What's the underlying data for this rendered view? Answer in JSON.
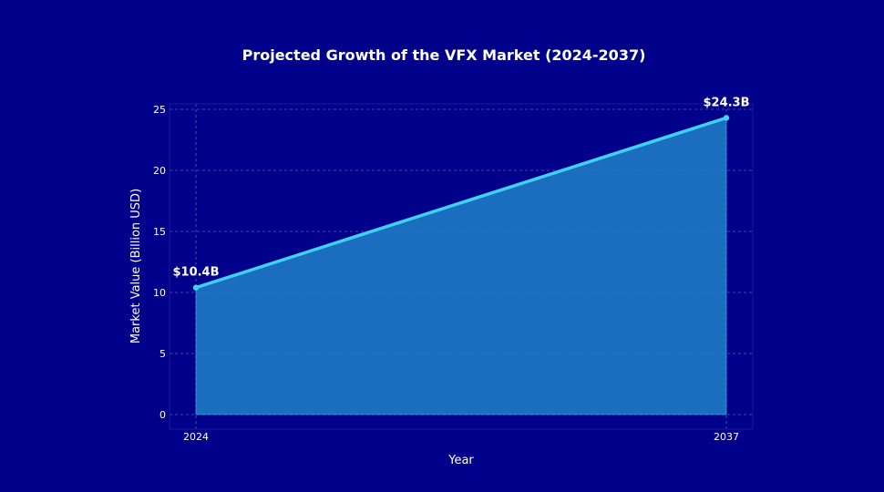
{
  "chart_data": {
    "type": "area",
    "title": "Projected Growth of the VFX Market (2024-2037)",
    "xlabel": "Year",
    "ylabel": "Market Value (Billion USD)",
    "x": [
      2024,
      2037
    ],
    "x_ticks": [
      "2024",
      "2037"
    ],
    "y_ticks": [
      0,
      5,
      10,
      15,
      20,
      25
    ],
    "ylim": [
      -1.2,
      25.5
    ],
    "grid": true,
    "series": [
      {
        "values": [
          10.4,
          24.3
        ],
        "labels": [
          "$10.4B",
          "$24.3B"
        ]
      }
    ],
    "colors": {
      "background": "#00008B",
      "line": "#3FD2F5",
      "fill": "#2080C8",
      "grid": "#5A5AC0"
    }
  }
}
